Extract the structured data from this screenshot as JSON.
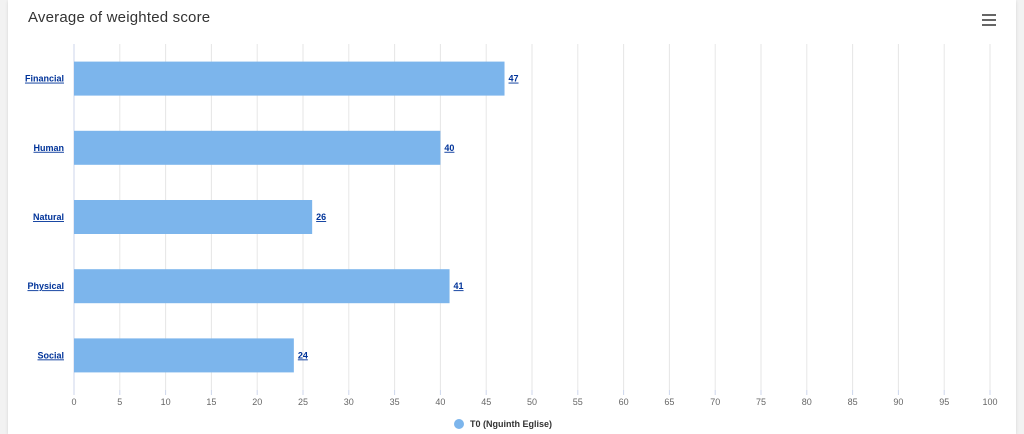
{
  "header": {
    "title": "Average of weighted score",
    "menu_icon": "hamburger-menu-icon"
  },
  "colors": {
    "bar": "#7cb5ec",
    "grid": "#e6e6e6",
    "axis_label": "#666666",
    "category_label": "#003399",
    "data_label": "#003399"
  },
  "chart_data": {
    "type": "bar",
    "orientation": "horizontal",
    "title": "Average of weighted score",
    "categories": [
      "Financial",
      "Human",
      "Natural",
      "Physical",
      "Social"
    ],
    "series": [
      {
        "name": "T0 (Nguinth Eglise)",
        "values": [
          47,
          40,
          26,
          41,
          24
        ]
      }
    ],
    "xlim": [
      0,
      100
    ],
    "ticks": [
      0,
      5,
      10,
      15,
      20,
      25,
      30,
      35,
      40,
      45,
      50,
      55,
      60,
      65,
      70,
      75,
      80,
      85,
      90,
      95,
      100
    ],
    "grid": true,
    "legend": "bottom-center",
    "data_labels": true
  }
}
